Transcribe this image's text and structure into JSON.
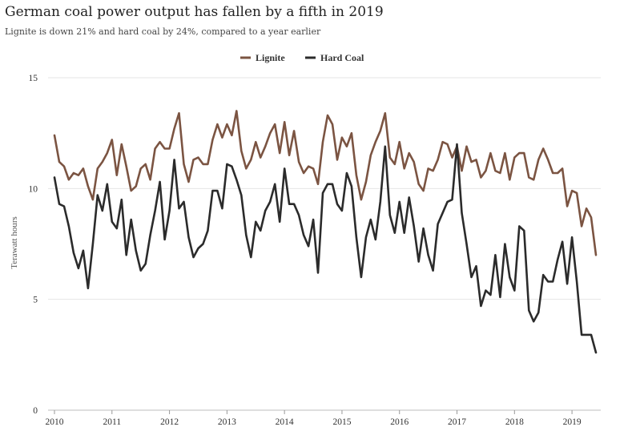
{
  "chart_data": {
    "type": "line",
    "title": "German coal power output has fallen by a fifth in 2019",
    "subtitle": "Lignite is down 21% and hard coal by 24%, compared to a year earlier",
    "ylabel": "Terawatt hours",
    "xlabel": "",
    "ylim": [
      0,
      15
    ],
    "yticks": [
      0,
      5,
      10,
      15
    ],
    "xlim": [
      2010,
      2019.5
    ],
    "xticks": [
      2010,
      2011,
      2012,
      2013,
      2014,
      2015,
      2016,
      2017,
      2018,
      2019
    ],
    "xtick_labels": [
      "2010",
      "2011",
      "2012",
      "2013",
      "2014",
      "2015",
      "2016",
      "2017",
      "2018",
      "2019"
    ],
    "legend_position": "top-center",
    "grid": "horizontal",
    "x_start": 2010,
    "x_step_months": 1,
    "series": [
      {
        "name": "Lignite",
        "color": "#7b5442",
        "values": [
          12.4,
          11.2,
          11.0,
          10.4,
          10.7,
          10.6,
          10.9,
          10.1,
          9.5,
          10.9,
          11.2,
          11.6,
          12.2,
          10.6,
          12.0,
          11.0,
          9.9,
          10.1,
          10.9,
          11.1,
          10.4,
          11.8,
          12.1,
          11.8,
          11.8,
          12.7,
          13.4,
          11.1,
          10.3,
          11.3,
          11.4,
          11.1,
          11.1,
          12.2,
          12.9,
          12.3,
          12.9,
          12.4,
          13.5,
          11.7,
          10.9,
          11.3,
          12.1,
          11.4,
          11.9,
          12.5,
          12.9,
          11.6,
          13.0,
          11.5,
          12.6,
          11.2,
          10.7,
          11.0,
          10.9,
          10.2,
          12.1,
          13.3,
          12.9,
          11.3,
          12.3,
          11.9,
          12.5,
          10.6,
          9.5,
          10.3,
          11.5,
          12.1,
          12.6,
          13.4,
          11.4,
          11.1,
          12.1,
          10.9,
          11.6,
          11.2,
          10.2,
          9.9,
          10.9,
          10.8,
          11.3,
          12.1,
          12.0,
          11.4,
          11.9,
          10.8,
          11.9,
          11.2,
          11.3,
          10.5,
          10.8,
          11.6,
          10.8,
          10.7,
          11.6,
          10.4,
          11.4,
          11.6,
          11.6,
          10.5,
          10.4,
          11.3,
          11.8,
          11.3,
          10.7,
          10.7,
          10.9,
          9.2,
          9.9,
          9.8,
          8.3,
          9.1,
          8.7,
          7.0
        ]
      },
      {
        "name": "Hard Coal",
        "color": "#2b2b2b",
        "values": [
          10.5,
          9.3,
          9.2,
          8.3,
          7.1,
          6.4,
          7.2,
          5.5,
          7.5,
          9.7,
          9.0,
          10.2,
          8.5,
          8.2,
          9.5,
          7.0,
          8.6,
          7.2,
          6.3,
          6.6,
          7.9,
          9.0,
          10.3,
          7.7,
          9.0,
          11.3,
          9.1,
          9.4,
          7.8,
          6.9,
          7.3,
          7.5,
          8.1,
          9.9,
          9.9,
          9.1,
          11.1,
          11.0,
          10.4,
          9.7,
          7.9,
          6.9,
          8.5,
          8.1,
          9.0,
          9.4,
          10.2,
          8.5,
          10.9,
          9.3,
          9.3,
          8.8,
          7.9,
          7.4,
          8.6,
          6.2,
          9.8,
          10.2,
          10.2,
          9.3,
          9.0,
          10.7,
          10.1,
          7.8,
          6.0,
          7.8,
          8.6,
          7.7,
          9.4,
          11.9,
          8.8,
          8.0,
          9.4,
          8.0,
          9.6,
          8.3,
          6.7,
          8.2,
          7.0,
          6.3,
          8.4,
          8.9,
          9.4,
          9.5,
          12.0,
          8.9,
          7.5,
          6.0,
          6.5,
          4.7,
          5.4,
          5.2,
          7.0,
          5.1,
          7.5,
          6.0,
          5.4,
          8.3,
          8.1,
          4.5,
          4.0,
          4.4,
          6.1,
          5.8,
          5.8,
          6.8,
          7.6,
          5.7,
          7.8,
          5.8,
          3.4,
          3.4,
          3.4,
          2.6
        ]
      }
    ]
  }
}
